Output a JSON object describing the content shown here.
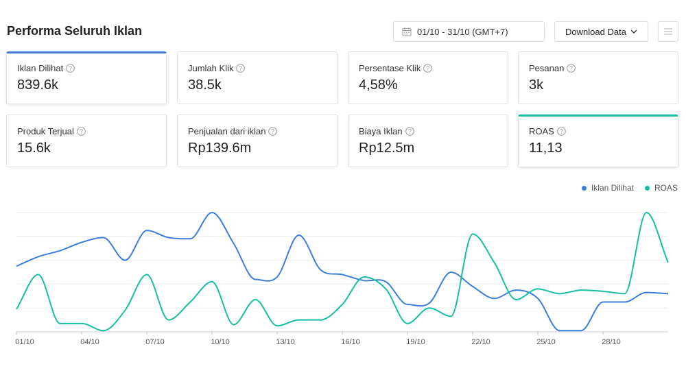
{
  "header": {
    "title": "Performa Seluruh Iklan",
    "date_range": "01/10 - 31/10 (GMT+7)",
    "download_label": "Download Data"
  },
  "cards": [
    {
      "label": "Iklan Dilihat",
      "value": "839.6k"
    },
    {
      "label": "Jumlah Klik",
      "value": "38.5k"
    },
    {
      "label": "Persentase Klik",
      "value": "4,58%"
    },
    {
      "label": "Pesanan",
      "value": "3k"
    },
    {
      "label": "Produk Terjual",
      "value": "15.6k"
    },
    {
      "label": "Penjualan dari iklan",
      "value": "Rp139.6m"
    },
    {
      "label": "Biaya Iklan",
      "value": "Rp12.5m"
    },
    {
      "label": "ROAS",
      "value": "11,13"
    }
  ],
  "colors": {
    "blue": "#3b7ddd",
    "green": "#15bfa0"
  },
  "chart_data": {
    "type": "line",
    "x": [
      "01/10",
      "02/10",
      "03/10",
      "04/10",
      "05/10",
      "06/10",
      "07/10",
      "08/10",
      "09/10",
      "10/10",
      "11/10",
      "12/10",
      "13/10",
      "14/10",
      "15/10",
      "16/10",
      "17/10",
      "18/10",
      "19/10",
      "20/10",
      "21/10",
      "22/10",
      "23/10",
      "24/10",
      "25/10",
      "26/10",
      "27/10",
      "28/10",
      "29/10",
      "30/10",
      "31/10"
    ],
    "xticks": [
      "01/10",
      "04/10",
      "07/10",
      "10/10",
      "13/10",
      "16/10",
      "19/10",
      "22/10",
      "25/10",
      "28/10"
    ],
    "ylim": [
      0,
      100
    ],
    "grid": true,
    "legend": "top-right",
    "series": [
      {
        "name": "Iklan Dilihat",
        "color": "#3b7ddd",
        "values": [
          55,
          63,
          68,
          75,
          79,
          60,
          85,
          79,
          78,
          100,
          74,
          44,
          46,
          81,
          52,
          48,
          43,
          42,
          23,
          24,
          50,
          38,
          28,
          35,
          28,
          1,
          1,
          25,
          25,
          33,
          32
        ]
      },
      {
        "name": "ROAS",
        "color": "#15bfa0",
        "values": [
          19,
          48,
          7,
          7,
          1,
          18,
          48,
          10,
          25,
          42,
          6,
          27,
          5,
          10,
          10,
          23,
          46,
          36,
          7,
          20,
          13,
          82,
          58,
          27,
          36,
          32,
          35,
          34,
          32,
          100,
          58
        ]
      }
    ]
  }
}
